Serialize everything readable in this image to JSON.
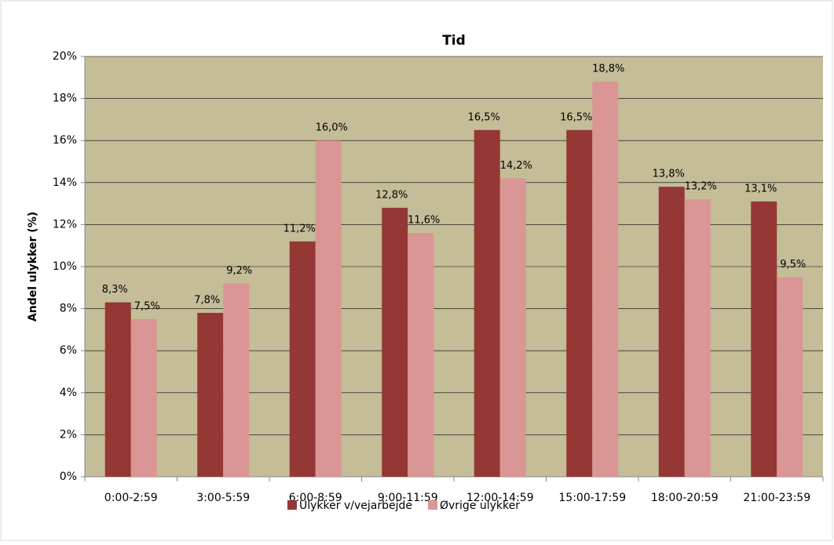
{
  "chart_data": {
    "type": "bar",
    "title": "Tid",
    "ylabel": "Andel ulykker (%)",
    "categories": [
      "0:00-2:59",
      "3:00-5:59",
      "6:00-8:59",
      "9:00-11:59",
      "12:00-14:59",
      "15:00-17:59",
      "18:00-20:59",
      "21:00-23:59"
    ],
    "series": [
      {
        "name": "Ulykker v/vejarbejde",
        "color": "#953735",
        "values": [
          8.3,
          7.8,
          11.2,
          12.8,
          16.5,
          16.5,
          13.8,
          13.1
        ],
        "value_labels": [
          "8,3%",
          "7,8%",
          "11,2%",
          "12,8%",
          "16,5%",
          "16,5%",
          "13,8%",
          "13,1%"
        ]
      },
      {
        "name": "Øvrige ulykker",
        "color": "#d99694",
        "values": [
          7.5,
          9.2,
          16.0,
          11.6,
          14.2,
          18.8,
          13.2,
          9.5
        ],
        "value_labels": [
          "7,5%",
          "9,2%",
          "16,0%",
          "11,6%",
          "14,2%",
          "18,8%",
          "13,2%",
          "9,5%"
        ]
      }
    ],
    "ylim": [
      0,
      20
    ],
    "yticks": [
      {
        "value": 0,
        "label": "0%"
      },
      {
        "value": 2,
        "label": "2%"
      },
      {
        "value": 4,
        "label": "4%"
      },
      {
        "value": 6,
        "label": "6%"
      },
      {
        "value": 8,
        "label": "8%"
      },
      {
        "value": 10,
        "label": "10%"
      },
      {
        "value": 12,
        "label": "12%"
      },
      {
        "value": 14,
        "label": "14%"
      },
      {
        "value": 16,
        "label": "16%"
      },
      {
        "value": 18,
        "label": "18%"
      },
      {
        "value": 20,
        "label": "20%"
      }
    ],
    "grid": true,
    "legend": "bottom",
    "plot_background": "#c4bd97"
  }
}
